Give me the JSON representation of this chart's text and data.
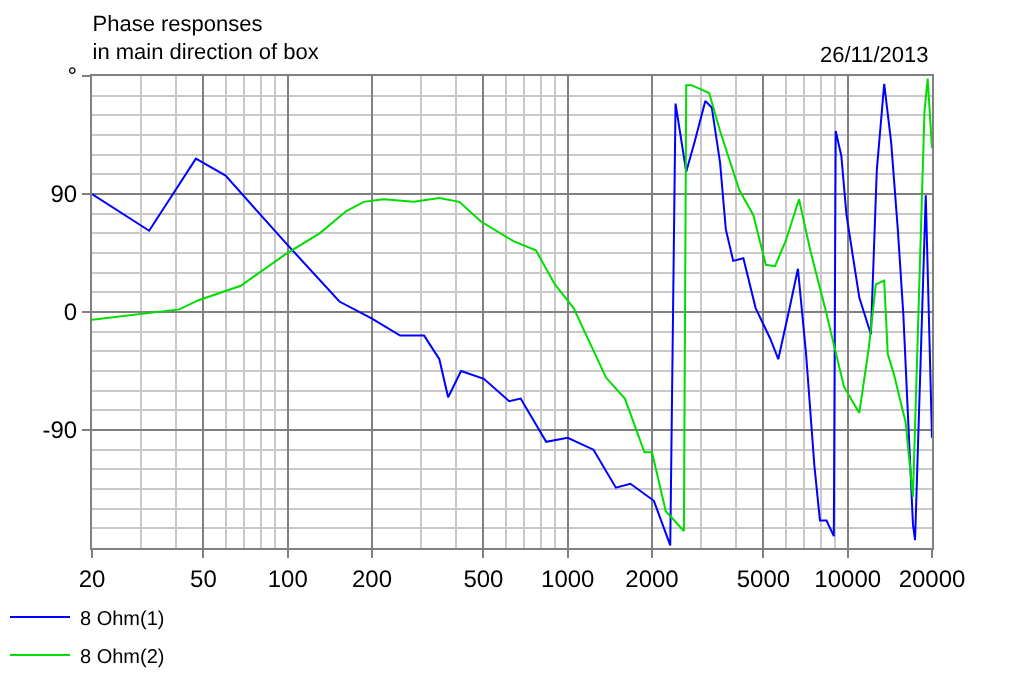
{
  "chart_data": {
    "type": "line",
    "title": "Phase responses\nin main direction of box",
    "annotations": [
      "26/11/2013"
    ],
    "log": "x",
    "xlim": [
      20,
      20000
    ],
    "xticks": [
      20,
      50,
      100,
      200,
      500,
      1000,
      2000,
      5000,
      10000,
      20000
    ],
    "ylim": [
      -180,
      180
    ],
    "yticks": [
      -90,
      0,
      90,
      {
        "value": 180,
        "label": "°"
      }
    ],
    "grid": true,
    "legend": "bottom left",
    "marker": "none",
    "line_style": "solid",
    "series": [
      {
        "name": "8 Ohm(1)",
        "color": "#0000ff",
        "x": [
          20,
          32,
          47,
          60,
          100,
          153,
          200,
          252,
          307,
          348,
          374,
          416,
          502,
          618,
          679,
          838,
          1000,
          1236,
          1486,
          1675,
          2031,
          2324,
          2427,
          2650,
          2850,
          3100,
          3270,
          3500,
          3670,
          3900,
          4240,
          4690,
          5280,
          5650,
          6200,
          6640,
          7100,
          7600,
          7960,
          8400,
          8920,
          9060,
          9490,
          9900,
          11000,
          12100,
          12700,
          13500,
          14300,
          15100,
          15800,
          17100,
          17400,
          19000,
          20000
        ],
        "values": [
          90,
          62,
          117,
          104,
          51,
          8,
          -5,
          -18,
          -18,
          -36,
          -65,
          -45,
          -51,
          -68,
          -66,
          -99,
          -96,
          -105,
          -134,
          -131,
          -144,
          -178,
          159,
          107,
          131,
          161,
          156,
          114,
          63,
          39,
          41,
          3,
          -20,
          -36,
          3,
          33,
          -32,
          -117,
          -159,
          -159,
          -171,
          138,
          119,
          74,
          11,
          -17,
          108,
          174,
          129,
          63,
          -2,
          -162,
          -174,
          89,
          -96
        ]
      },
      {
        "name": "8 Ohm(2)",
        "color": "#00dd00",
        "x": [
          20,
          41,
          48,
          68,
          98,
          130,
          162,
          187,
          220,
          282,
          348,
          410,
          490,
          640,
          770,
          900,
          1050,
          1370,
          1600,
          1880,
          2000,
          2240,
          2600,
          2650,
          2770,
          3200,
          3500,
          4100,
          4600,
          5100,
          5500,
          6000,
          6700,
          7350,
          8300,
          9700,
          11000,
          11900,
          12600,
          13500,
          13900,
          14600,
          16100,
          17100,
          18800,
          19300,
          20000
        ],
        "values": [
          -6,
          2,
          9,
          20,
          44,
          60,
          77,
          84,
          86,
          84,
          87,
          84,
          69,
          54,
          47,
          21,
          3,
          -50,
          -66,
          -107,
          -107,
          -152,
          -167,
          173,
          173,
          167,
          138,
          93,
          74,
          36,
          35,
          54,
          86,
          47,
          3,
          -57,
          -77,
          -27,
          21,
          24,
          -32,
          -47,
          -84,
          -141,
          153,
          178,
          125
        ]
      }
    ]
  }
}
